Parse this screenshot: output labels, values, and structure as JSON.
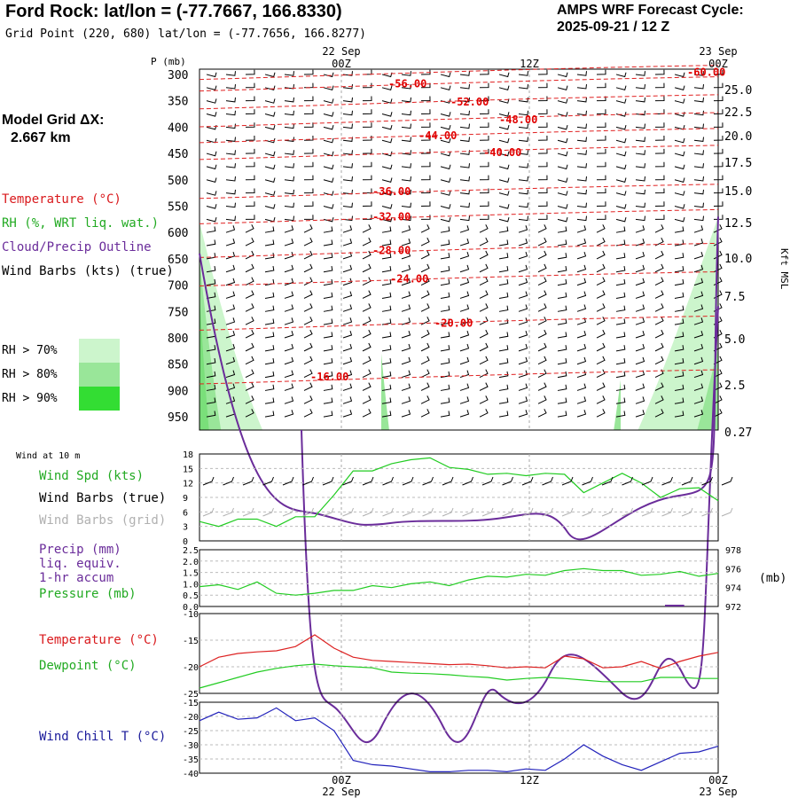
{
  "header": {
    "title": "Ford Rock:  lat/lon = (-77.7667, 166.8330)",
    "grid_point": "Grid Point (220, 680) lat/lon = (-77.7656, 166.8277)",
    "cycle_line1": "AMPS WRF Forecast Cycle:",
    "cycle_line2": "2025-09-21 / 12  Z"
  },
  "left_panel": {
    "model_grid_line1": "Model Grid ΔX:",
    "model_grid_line2": "2.667 km",
    "legend": [
      {
        "label": "Temperature (°C)",
        "color": "#d9191c"
      },
      {
        "label": "RH (%, WRT liq. wat.)",
        "color": "#22bb22"
      },
      {
        "label": "Cloud/Precip Outline",
        "color": "#6a2c9a"
      },
      {
        "label": "Wind Barbs (kts) (true)",
        "color": "#000000"
      }
    ],
    "rh_legend": [
      {
        "label": "RH > 70%",
        "color": "#ccf5cc"
      },
      {
        "label": "RH > 80%",
        "color": "#99e699"
      },
      {
        "label": "RH > 90%",
        "color": "#33dd33"
      }
    ]
  },
  "time_axis": {
    "top_labels": [
      {
        "date": "22 Sep",
        "time": "00Z"
      },
      {
        "date": "",
        "time": "12Z"
      },
      {
        "date": "23 Sep",
        "time": "00Z"
      }
    ],
    "bottom_labels": [
      {
        "time": "00Z",
        "date": "22 Sep"
      },
      {
        "time": "12Z",
        "date": ""
      },
      {
        "time": "00Z",
        "date": "23 Sep"
      }
    ]
  },
  "chart_data": [
    {
      "type": "heatmap",
      "name": "vertical-cross-section",
      "ylabel_left": "P (mb)",
      "ylabel_right": "Kft MSL",
      "pressure_ticks": [
        "300",
        "350",
        "400",
        "450",
        "500",
        "550",
        "600",
        "650",
        "700",
        "750",
        "800",
        "850",
        "900",
        "950"
      ],
      "height_ticks": [
        "25.0",
        "22.5",
        "20.0",
        "17.5",
        "15.0",
        "12.5",
        "10.0",
        "7.5",
        "5.0",
        "2.5",
        "0.27"
      ],
      "temperature_isotherms": [
        {
          "label": "-60.00",
          "value": -60
        },
        {
          "label": "-56.00",
          "value": -56
        },
        {
          "label": "-52.00",
          "value": -52
        },
        {
          "label": "-48.00",
          "value": -48
        },
        {
          "label": "-44.00",
          "value": -44
        },
        {
          "label": "-40.00",
          "value": -40
        },
        {
          "label": "-36.00",
          "value": -36
        },
        {
          "label": "-32.00",
          "value": -32
        },
        {
          "label": "-28.00",
          "value": -28
        },
        {
          "label": "-24.00",
          "value": -24
        },
        {
          "label": "-20.00",
          "value": -20
        },
        {
          "label": "-16.00",
          "value": -16
        }
      ]
    },
    {
      "type": "line",
      "name": "wind-10m",
      "title": "Wind at 10 m",
      "labels": [
        {
          "text": "Wind Spd (kts)",
          "color": "#22aa22"
        },
        {
          "text": "Wind Barbs (true)",
          "color": "#000000"
        },
        {
          "text": "Wind Barbs (grid)",
          "color": "#b0b0b0"
        }
      ],
      "yticks": [
        "18",
        "15",
        "12",
        "9",
        "6",
        "3",
        "0"
      ],
      "ylim": [
        0,
        18
      ],
      "series": [
        {
          "name": "Wind Spd (kts)",
          "color": "#22cc22",
          "x": [
            0,
            1,
            2,
            3,
            4,
            5,
            6,
            7,
            8,
            9,
            10,
            11,
            12,
            13,
            14,
            15,
            16,
            17,
            18,
            19,
            20,
            21,
            22,
            23,
            24,
            25,
            26,
            27
          ],
          "values": [
            4.0,
            3.0,
            4.5,
            4.5,
            3.0,
            5.0,
            5.0,
            9.5,
            14.5,
            14.5,
            16.0,
            16.8,
            17.2,
            15.2,
            14.8,
            13.8,
            14.0,
            13.5,
            14.0,
            13.8,
            10.0,
            12.0,
            14.0,
            12.0,
            9.0,
            10.8,
            11.0,
            8.3
          ]
        }
      ]
    },
    {
      "type": "line",
      "name": "pressure-precip",
      "labels": [
        {
          "text": "Precip (mm)",
          "color": "#6a2c9a"
        },
        {
          "text": "liq. equiv.",
          "color": "#6a2c9a"
        },
        {
          "text": "1-hr accum",
          "color": "#6a2c9a"
        },
        {
          "text": "Pressure (mb)",
          "color": "#22aa22"
        }
      ],
      "yticks_left": [
        "2.5",
        "2.0",
        "1.5",
        "1.0",
        "0.5",
        "0.0"
      ],
      "yticks_right": [
        "978",
        "976",
        "974",
        "972"
      ],
      "ylabel_right": "(mb)",
      "ylim_left": [
        0,
        2.5
      ],
      "ylim_right": [
        972,
        978
      ],
      "series": [
        {
          "name": "Pressure (mb)",
          "color": "#22cc22",
          "x": [
            0,
            1,
            2,
            3,
            4,
            5,
            6,
            7,
            8,
            9,
            10,
            11,
            12,
            13,
            14,
            15,
            16,
            17,
            18,
            19,
            20,
            21,
            22,
            23,
            24,
            25,
            26,
            27
          ],
          "values": [
            974.1,
            974.3,
            973.8,
            974.6,
            973.4,
            973.2,
            973.4,
            973.7,
            973.7,
            974.2,
            974.0,
            974.4,
            974.6,
            974.2,
            974.8,
            975.2,
            975.1,
            975.4,
            975.3,
            975.8,
            976.0,
            975.8,
            975.8,
            975.3,
            975.4,
            975.7,
            975.2,
            975.5
          ]
        },
        {
          "name": "Precip (mm)",
          "color": "#6a2c9a",
          "x": [
            24,
            25
          ],
          "values": [
            0.0,
            0.0
          ]
        }
      ]
    },
    {
      "type": "line",
      "name": "temperature-dewpoint",
      "labels": [
        {
          "text": "Temperature (°C)",
          "color": "#d9191c"
        },
        {
          "text": "Dewpoint (°C)",
          "color": "#22aa22"
        }
      ],
      "yticks": [
        "-10",
        "-15",
        "-20",
        "-25"
      ],
      "ylim": [
        -25,
        -10
      ],
      "series": [
        {
          "name": "Temperature (°C)",
          "color": "#dd2222",
          "x": [
            0,
            1,
            2,
            3,
            4,
            5,
            6,
            7,
            8,
            9,
            10,
            11,
            12,
            13,
            14,
            15,
            16,
            17,
            18,
            19,
            20,
            21,
            22,
            23,
            24,
            25,
            26,
            27
          ],
          "values": [
            -20.0,
            -18.2,
            -17.5,
            -17.2,
            -17.0,
            -16.2,
            -14.0,
            -16.5,
            -18.2,
            -18.8,
            -19.0,
            -19.2,
            -19.4,
            -19.6,
            -19.5,
            -19.8,
            -20.2,
            -20.0,
            -20.2,
            -18.0,
            -18.5,
            -20.2,
            -20.0,
            -19.0,
            -20.3,
            -19.0,
            -18.0,
            -17.3
          ]
        },
        {
          "name": "Dewpoint (°C)",
          "color": "#22cc22",
          "x": [
            0,
            1,
            2,
            3,
            4,
            5,
            6,
            7,
            8,
            9,
            10,
            11,
            12,
            13,
            14,
            15,
            16,
            17,
            18,
            19,
            20,
            21,
            22,
            23,
            24,
            25,
            26,
            27
          ],
          "values": [
            -24.0,
            -23.0,
            -22.0,
            -21.0,
            -20.3,
            -19.8,
            -19.5,
            -19.8,
            -20.0,
            -20.2,
            -21.0,
            -21.2,
            -21.3,
            -21.5,
            -21.8,
            -22.0,
            -22.5,
            -22.2,
            -22.0,
            -22.2,
            -22.5,
            -22.8,
            -22.8,
            -22.8,
            -22.0,
            -22.0,
            -22.2,
            -22.2
          ]
        }
      ]
    },
    {
      "type": "line",
      "name": "wind-chill",
      "labels": [
        {
          "text": "Wind Chill T (°C)",
          "color": "#1a1a9a"
        }
      ],
      "yticks": [
        "-15",
        "-20",
        "-25",
        "-30",
        "-35",
        "-40"
      ],
      "ylim": [
        -40,
        -15
      ],
      "series": [
        {
          "name": "Wind Chill T (°C)",
          "color": "#2222bb",
          "x": [
            0,
            1,
            2,
            3,
            4,
            5,
            6,
            7,
            8,
            9,
            10,
            11,
            12,
            13,
            14,
            15,
            16,
            17,
            18,
            19,
            20,
            21,
            22,
            23,
            24,
            25,
            26,
            27
          ],
          "values": [
            -21.5,
            -18.5,
            -21.0,
            -20.5,
            -17.0,
            -21.5,
            -20.5,
            -25.0,
            -35.5,
            -37.0,
            -37.5,
            -38.5,
            -39.5,
            -39.5,
            -39.0,
            -39.0,
            -39.5,
            -38.5,
            -39.0,
            -35.0,
            -30.0,
            -34.0,
            -37.0,
            -39.0,
            -36.0,
            -33.0,
            -32.5,
            -30.5
          ]
        }
      ]
    }
  ]
}
